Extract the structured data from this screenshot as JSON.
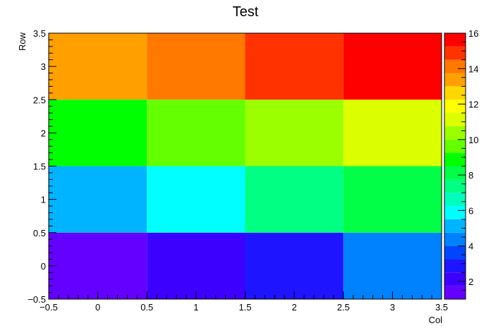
{
  "chart_data": {
    "type": "heatmap",
    "title": "Test",
    "xlabel": "Col",
    "ylabel": "Row",
    "xlim": [
      -0.5,
      3.5
    ],
    "ylim": [
      -0.5,
      3.5
    ],
    "x_ticks": [
      "−0.5",
      "0",
      "0.5",
      "1",
      "1.5",
      "2",
      "2.5",
      "3",
      "3.5"
    ],
    "y_ticks": [
      "−0.5",
      "0",
      "0.5",
      "1",
      "1.5",
      "2",
      "2.5",
      "3",
      "3.5"
    ],
    "cols": [
      0,
      1,
      2,
      3
    ],
    "rows": [
      0,
      1,
      2,
      3
    ],
    "values": [
      [
        1,
        2,
        3,
        4
      ],
      [
        5,
        6,
        7,
        8
      ],
      [
        9,
        10,
        11,
        12
      ],
      [
        13,
        14,
        15,
        16
      ]
    ],
    "zlim": [
      1,
      16
    ],
    "colorbar": {
      "ticks": [
        "2",
        "4",
        "6",
        "8",
        "10",
        "12",
        "14",
        "16"
      ],
      "palette": [
        "#6400ff",
        "#3c00ff",
        "#1e14ff",
        "#0046ff",
        "#0082ff",
        "#00b4ff",
        "#00ffff",
        "#00ffbe",
        "#00ff82",
        "#00ff46",
        "#00ff00",
        "#64ff00",
        "#9bff00",
        "#dcff00",
        "#ffff00",
        "#ffd700",
        "#ffa000",
        "#ff7800",
        "#ff3200",
        "#ff0000"
      ]
    },
    "cell_colors": [
      [
        "#6400ff",
        "#3c00ff",
        "#1e14ff",
        "#0082ff"
      ],
      [
        "#00b4ff",
        "#00ffff",
        "#00ff82",
        "#00ff46"
      ],
      [
        "#00ff00",
        "#64ff00",
        "#9bff00",
        "#dcff00"
      ],
      [
        "#ffa000",
        "#ff7800",
        "#ff3200",
        "#ff0000"
      ]
    ]
  }
}
